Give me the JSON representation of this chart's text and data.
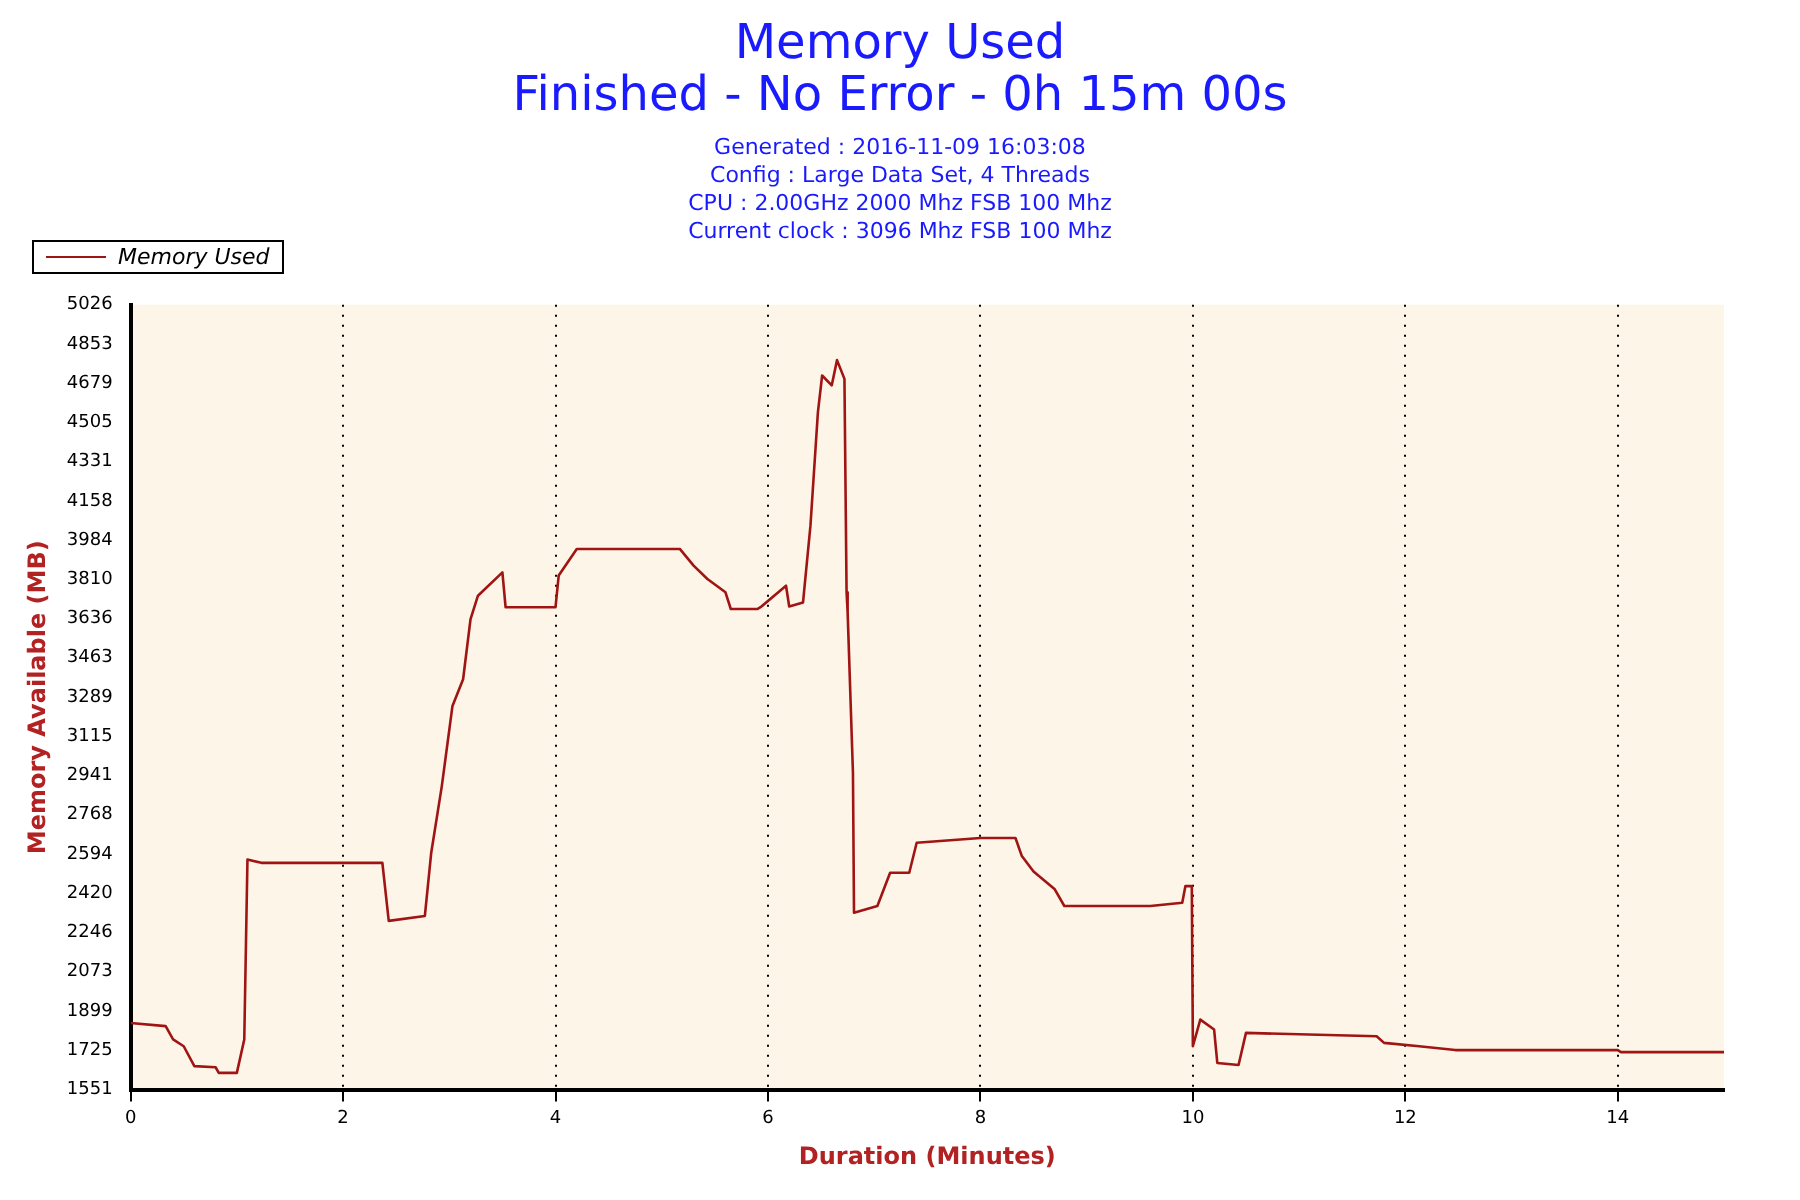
{
  "chart_data": {
    "type": "line",
    "title": "Memory Used",
    "subtitle": "Finished - No Error - 0h 15m 00s",
    "annotations": [
      "Generated : 2016-11-09 16:03:08",
      "Config : Large Data Set, 4 Threads",
      "CPU : 2.00GHz 2000 Mhz FSB 100 Mhz",
      "Current clock : 3096 Mhz FSB 100 Mhz"
    ],
    "xlabel": "Duration (Minutes)",
    "ylabel": "Memory Available (MB)",
    "x": [
      0,
      0.33,
      0.4,
      0.5,
      0.6,
      0.8,
      0.83,
      1.0,
      1.07,
      1.1,
      1.23,
      2.37,
      2.43,
      2.77,
      2.83,
      2.93,
      3.03,
      3.13,
      3.2,
      3.27,
      3.5,
      3.53,
      4.0,
      4.03,
      4.2,
      4.73,
      5.17,
      5.3,
      5.43,
      5.6,
      5.65,
      5.9,
      5.93,
      6.17,
      6.2,
      6.33,
      6.4,
      6.47,
      6.51,
      6.6,
      6.65,
      6.72,
      6.74,
      6.75,
      6.8,
      6.81,
      7.03,
      7.15,
      7.33,
      7.4,
      8.0,
      8.33,
      8.39,
      8.5,
      8.7,
      8.79,
      9.6,
      9.9,
      9.93,
      9.99,
      10.0,
      10.07,
      10.2,
      10.23,
      10.43,
      10.5,
      11.73,
      11.8,
      12.13,
      12.47,
      14.0,
      14.03,
      15
    ],
    "series": [
      {
        "name": "Memory Used",
        "color": "#a01414",
        "values": [
          1846,
          1832,
          1773,
          1743,
          1655,
          1650,
          1625,
          1625,
          1773,
          2570,
          2555,
          2555,
          2298,
          2320,
          2600,
          2896,
          3250,
          3368,
          3634,
          3738,
          3841,
          3687,
          3687,
          3827,
          3945,
          3945,
          3945,
          3871,
          3812,
          3753,
          3679,
          3679,
          3687,
          3782,
          3690,
          3708,
          4048,
          4550,
          4713,
          4669,
          4781,
          4698,
          3753,
          3664,
          2955,
          2334,
          2364,
          2511,
          2511,
          2644,
          2665,
          2665,
          2585,
          2517,
          2438,
          2364,
          2364,
          2378,
          2452,
          2452,
          1743,
          1861,
          1817,
          1669,
          1660,
          1802,
          1787,
          1758,
          1743,
          1726,
          1726,
          1717,
          1717
        ]
      }
    ],
    "xlim": [
      0,
      15
    ],
    "xticks": [
      0,
      2,
      4,
      6,
      8,
      10,
      12,
      14
    ],
    "ylim": [
      1551,
      5026
    ],
    "yticks": [
      1551,
      1725,
      1899,
      2073,
      2246,
      2420,
      2594,
      2768,
      2941,
      3115,
      3289,
      3463,
      3636,
      3810,
      3984,
      4158,
      4331,
      4505,
      4679,
      4853,
      5026
    ],
    "grid": "x",
    "legend": "top left",
    "marker": "none",
    "line_style": "solid"
  }
}
